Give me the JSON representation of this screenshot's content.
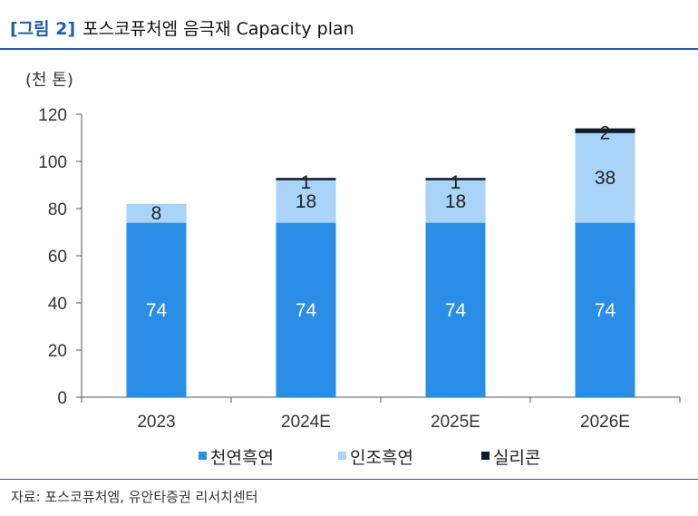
{
  "header": {
    "figure_tag": "[그림 2]",
    "title": "포스코퓨처엠 음극재 Capacity plan"
  },
  "footer": {
    "source": "자료: 포스코퓨처엠, 유안타증권 리서치센터"
  },
  "chart_data": {
    "type": "bar",
    "stacked": true,
    "title": "포스코퓨처엠 음극재 Capacity plan",
    "unit_label": "(천 톤)",
    "categories": [
      "2023",
      "2024E",
      "2025E",
      "2026E"
    ],
    "series": [
      {
        "name": "천연흑연",
        "color": "#2b8ee6",
        "label_color": "#ffffff",
        "values": [
          74,
          74,
          74,
          74
        ]
      },
      {
        "name": "인조흑연",
        "color": "#a9d4f7",
        "label_color": "#222222",
        "values": [
          8,
          18,
          18,
          38
        ]
      },
      {
        "name": "실리콘",
        "color": "#0d1b2a",
        "label_color": "#222222",
        "values": [
          null,
          1,
          1,
          2
        ]
      }
    ],
    "ylim": [
      0,
      120
    ],
    "yticks": [
      0,
      20,
      40,
      60,
      80,
      100,
      120
    ],
    "legend_position": "bottom"
  }
}
